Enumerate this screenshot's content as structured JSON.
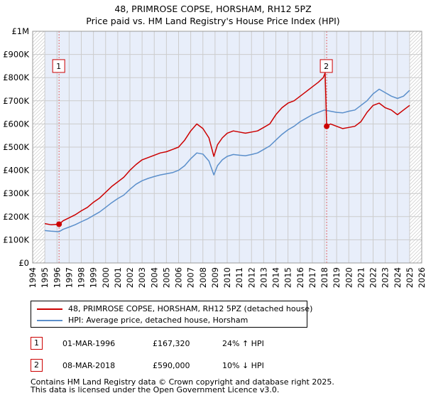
{
  "chart_data": {
    "type": "line",
    "title": "48, PRIMROSE COPSE, HORSHAM, RH12 5PZ",
    "subtitle": "Price paid vs. HM Land Registry's House Price Index (HPI)",
    "xlim": [
      1994,
      2026
    ],
    "ylim": [
      0,
      1000000
    ],
    "x_ticks": [
      1994,
      1995,
      1996,
      1997,
      1998,
      1999,
      2000,
      2001,
      2002,
      2003,
      2004,
      2005,
      2006,
      2007,
      2008,
      2009,
      2010,
      2011,
      2012,
      2013,
      2014,
      2015,
      2016,
      2017,
      2018,
      2019,
      2020,
      2021,
      2022,
      2023,
      2024,
      2025,
      2026
    ],
    "x_tick_labels": [
      "1994",
      "1995",
      "1996",
      "1997",
      "1998",
      "1999",
      "2000",
      "2001",
      "2002",
      "2003",
      "2004",
      "2005",
      "2006",
      "2007",
      "2008",
      "2009",
      "2010",
      "2011",
      "2012",
      "2013",
      "2014",
      "2015",
      "2016",
      "2017",
      "2018",
      "2019",
      "2020",
      "2021",
      "2022",
      "2023",
      "2024",
      "2025",
      "2026"
    ],
    "y_ticks": [
      0,
      100000,
      200000,
      300000,
      400000,
      500000,
      600000,
      700000,
      800000,
      900000,
      1000000
    ],
    "y_tick_labels": [
      "£0",
      "£100K",
      "£200K",
      "£300K",
      "£400K",
      "£500K",
      "£600K",
      "£700K",
      "£800K",
      "£900K",
      "£1M"
    ],
    "grid": true,
    "data_range_shading": [
      1995.0,
      2025.0
    ],
    "series": [
      {
        "name": "48, PRIMROSE COPSE, HORSHAM, RH12 5PZ (detached house)",
        "color": "#cc0000",
        "x": [
          1995.0,
          1995.5,
          1996.17,
          1996.5,
          1997.0,
          1997.5,
          1998.0,
          1998.5,
          1999.0,
          1999.5,
          2000.0,
          2000.5,
          2001.0,
          2001.5,
          2002.0,
          2002.5,
          2003.0,
          2003.5,
          2004.0,
          2004.5,
          2005.0,
          2005.5,
          2006.0,
          2006.5,
          2007.0,
          2007.5,
          2008.0,
          2008.5,
          2008.9,
          2009.2,
          2009.6,
          2010.0,
          2010.5,
          2011.0,
          2011.5,
          2012.0,
          2012.5,
          2013.0,
          2013.5,
          2014.0,
          2014.5,
          2015.0,
          2015.5,
          2016.0,
          2016.5,
          2017.0,
          2017.5,
          2017.9,
          2018.05,
          2018.18,
          2018.5,
          2019.0,
          2019.5,
          2020.0,
          2020.5,
          2021.0,
          2021.5,
          2022.0,
          2022.5,
          2023.0,
          2023.5,
          2024.0,
          2024.5,
          2025.0
        ],
        "values": [
          170000,
          165000,
          167320,
          182000,
          195000,
          208000,
          225000,
          240000,
          262000,
          280000,
          305000,
          330000,
          350000,
          370000,
          400000,
          425000,
          445000,
          455000,
          465000,
          475000,
          480000,
          490000,
          500000,
          530000,
          570000,
          600000,
          580000,
          540000,
          460000,
          510000,
          540000,
          560000,
          570000,
          565000,
          560000,
          565000,
          570000,
          585000,
          600000,
          640000,
          670000,
          690000,
          700000,
          720000,
          740000,
          760000,
          780000,
          800000,
          820000,
          590000,
          600000,
          590000,
          580000,
          585000,
          590000,
          610000,
          650000,
          680000,
          690000,
          670000,
          660000,
          640000,
          660000,
          680000
        ]
      },
      {
        "name": "HPI: Average price, detached house, Horsham",
        "color": "#5b8fcb",
        "x": [
          1995.0,
          1995.5,
          1996.17,
          1996.5,
          1997.0,
          1997.5,
          1998.0,
          1998.5,
          1999.0,
          1999.5,
          2000.0,
          2000.5,
          2001.0,
          2001.5,
          2002.0,
          2002.5,
          2003.0,
          2003.5,
          2004.0,
          2004.5,
          2005.0,
          2005.5,
          2006.0,
          2006.5,
          2007.0,
          2007.5,
          2008.0,
          2008.5,
          2008.9,
          2009.2,
          2009.6,
          2010.0,
          2010.5,
          2011.0,
          2011.5,
          2012.0,
          2012.5,
          2013.0,
          2013.5,
          2014.0,
          2014.5,
          2015.0,
          2015.5,
          2016.0,
          2016.5,
          2017.0,
          2017.5,
          2018.0,
          2018.5,
          2019.0,
          2019.5,
          2020.0,
          2020.5,
          2021.0,
          2021.5,
          2022.0,
          2022.5,
          2023.0,
          2023.5,
          2024.0,
          2024.5,
          2025.0
        ],
        "values": [
          140000,
          137000,
          135000,
          145000,
          155000,
          165000,
          178000,
          190000,
          205000,
          220000,
          240000,
          260000,
          278000,
          293000,
          318000,
          340000,
          355000,
          365000,
          373000,
          380000,
          385000,
          390000,
          400000,
          420000,
          450000,
          475000,
          470000,
          440000,
          380000,
          420000,
          445000,
          460000,
          468000,
          465000,
          463000,
          468000,
          475000,
          490000,
          505000,
          530000,
          555000,
          575000,
          590000,
          610000,
          625000,
          640000,
          650000,
          660000,
          655000,
          650000,
          648000,
          655000,
          660000,
          680000,
          700000,
          730000,
          750000,
          735000,
          720000,
          710000,
          720000,
          745000
        ]
      }
    ],
    "sales": [
      {
        "label": "1",
        "x": 1996.17,
        "value": 167320
      },
      {
        "label": "2",
        "x": 2018.18,
        "value": 590000
      }
    ],
    "marker_label_value": 850000
  },
  "legend": {
    "items": [
      {
        "label": "48, PRIMROSE COPSE, HORSHAM, RH12 5PZ (detached house)",
        "color": "#cc0000"
      },
      {
        "label": "HPI: Average price, detached house, Horsham",
        "color": "#5b8fcb"
      }
    ]
  },
  "sales_table": [
    {
      "num": "1",
      "date": "01-MAR-1996",
      "price": "£167,320",
      "hpi": "24% ↑ HPI"
    },
    {
      "num": "2",
      "date": "08-MAR-2018",
      "price": "£590,000",
      "hpi": "10% ↓ HPI"
    }
  ],
  "footer": {
    "line1": "Contains HM Land Registry data © Crown copyright and database right 2025.",
    "line2": "This data is licensed under the Open Government Licence v3.0."
  }
}
